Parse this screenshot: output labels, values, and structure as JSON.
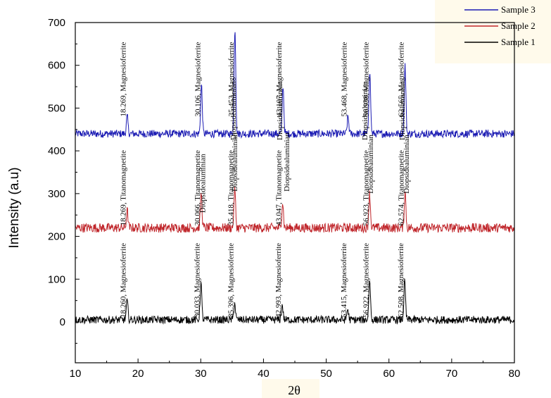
{
  "chart_data": {
    "type": "line",
    "xlabel": "2θ",
    "ylabel": "Intensity (a.u)",
    "xlim": [
      10,
      80
    ],
    "ylim": [
      -80,
      710
    ],
    "x_ticks": [
      10,
      20,
      30,
      40,
      50,
      60,
      70,
      80
    ],
    "y_ticks": [
      0,
      100,
      200,
      300,
      400,
      500,
      600,
      700
    ],
    "legend": {
      "position": "top-right",
      "entries": [
        "Sample 3",
        "Sample 2",
        "Sample 1"
      ]
    },
    "grid": false,
    "colors": {
      "Sample 3": "#1b1bb3",
      "Sample 2": "#c0262b",
      "Sample 1": "#000000"
    },
    "series": [
      {
        "name": "Sample 3",
        "baseline": 440,
        "peaks": [
          [
            18.27,
            480
          ],
          [
            30.11,
            555
          ],
          [
            35.45,
            688
          ],
          [
            43.11,
            553
          ],
          [
            53.47,
            480
          ],
          [
            56.94,
            590
          ],
          [
            62.57,
            600
          ]
        ]
      },
      {
        "name": "Sample 2",
        "baseline": 220,
        "peaks": [
          [
            18.27,
            260
          ],
          [
            30.07,
            300
          ],
          [
            35.42,
            310
          ],
          [
            43.05,
            280
          ],
          [
            56.92,
            300
          ],
          [
            62.57,
            305
          ]
        ]
      },
      {
        "name": "Sample 1",
        "baseline": 5,
        "peaks": [
          [
            18.26,
            50
          ],
          [
            30.03,
            92
          ],
          [
            35.4,
            45
          ],
          [
            42.99,
            40
          ],
          [
            53.42,
            30
          ],
          [
            56.92,
            100
          ],
          [
            62.51,
            95
          ]
        ]
      }
    ],
    "annotations": [
      {
        "x": 18.26,
        "y": 480,
        "text": "18.269, Magnesioferrite"
      },
      {
        "x": 30.11,
        "y": 480,
        "text": "30.106, Magnesioferrite"
      },
      {
        "x": 35.45,
        "y": 480,
        "text": "35.453, Magnesioferrite"
      },
      {
        "x": 43.11,
        "y": 480,
        "text": "43.107, Magnesioferrite"
      },
      {
        "x": 53.47,
        "y": 480,
        "text": "53.468, Magnesioferrite"
      },
      {
        "x": 56.94,
        "y": 480,
        "text": "56.938, Magnesioferrite"
      },
      {
        "x": 62.57,
        "y": 480,
        "text": "62.565, Magnesioferrite"
      },
      {
        "x": 43.2,
        "y": 425,
        "text": "Diopsidealuminian"
      },
      {
        "x": 56.8,
        "y": 425,
        "text": "Diopsidealuminian"
      },
      {
        "x": 62.7,
        "y": 425,
        "text": "Diopsidealuminian"
      },
      {
        "x": 35.8,
        "y": 425,
        "text": "Diopsidealuminian"
      },
      {
        "x": 18.27,
        "y": 225,
        "text": "18.269, Titanomagnetite"
      },
      {
        "x": 30.07,
        "y": 225,
        "text": "30.066, Titanomagnetite"
      },
      {
        "x": 35.42,
        "y": 225,
        "text": "35.418, Titanomagnetite"
      },
      {
        "x": 43.05,
        "y": 225,
        "text": "43.047, Titanomagnetite"
      },
      {
        "x": 56.92,
        "y": 225,
        "text": "56.923, Titanomagnetite"
      },
      {
        "x": 62.57,
        "y": 225,
        "text": "62.574, Titanomagnetite"
      },
      {
        "x": 30.9,
        "y": 255,
        "text": "Diopsidealuminian"
      },
      {
        "x": 36.0,
        "y": 305,
        "text": "Diopsidealuminian"
      },
      {
        "x": 44.3,
        "y": 305,
        "text": "Diopsidealuminian"
      },
      {
        "x": 57.7,
        "y": 300,
        "text": "Diopsidealuminian"
      },
      {
        "x": 63.4,
        "y": 300,
        "text": "Diopsidealuminian"
      },
      {
        "x": 18.26,
        "y": 10,
        "text": "18.260, Magnesioferrite"
      },
      {
        "x": 30.03,
        "y": 10,
        "text": "30.033, Magnesioferrite"
      },
      {
        "x": 35.4,
        "y": 10,
        "text": "35.396, Magnesioferrite"
      },
      {
        "x": 42.99,
        "y": 10,
        "text": "42.993, Magnesioferrite"
      },
      {
        "x": 53.42,
        "y": 10,
        "text": "53.415, Magnesioferrite"
      },
      {
        "x": 56.92,
        "y": 10,
        "text": "56.922, Magnesioferrite"
      },
      {
        "x": 62.51,
        "y": 10,
        "text": "62.508, Magnesioferrite"
      }
    ]
  }
}
